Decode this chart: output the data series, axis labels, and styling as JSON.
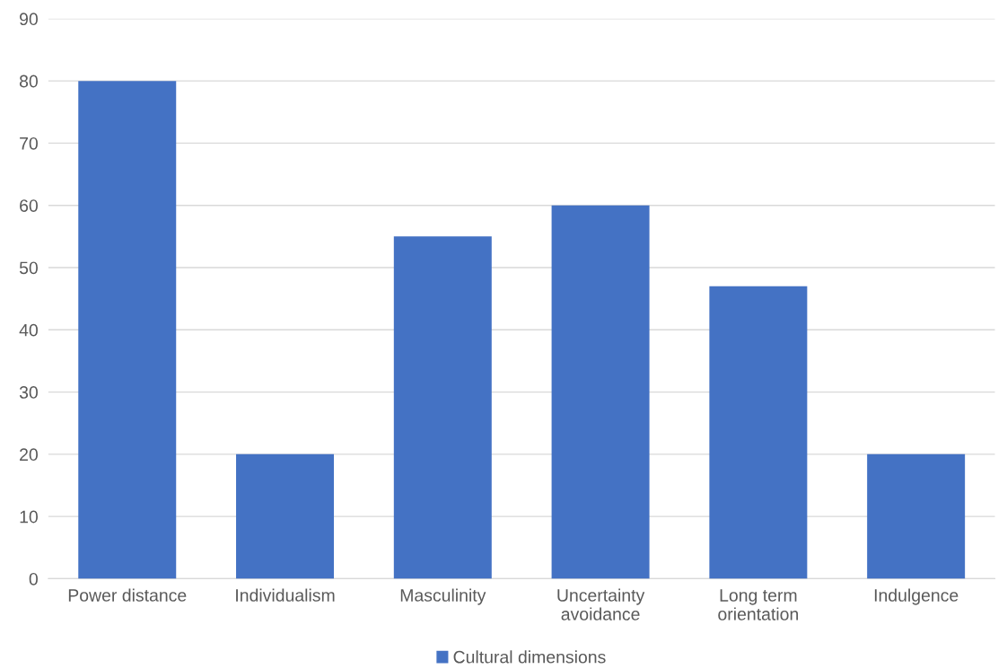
{
  "chart_data": {
    "type": "bar",
    "categories": [
      "Power distance",
      "Individualism",
      "Masculinity",
      "Uncertainty\navoidance",
      "Long term\norientation",
      "Indulgence"
    ],
    "series": [
      {
        "name": "Cultural dimensions",
        "color": "#4472c4",
        "values": [
          80,
          20,
          55,
          60,
          47,
          20
        ]
      }
    ],
    "ylim": [
      0,
      90
    ],
    "yticks": [
      0,
      10,
      20,
      30,
      40,
      50,
      60,
      70,
      80,
      90
    ],
    "grid": "y",
    "legend": "bottom"
  }
}
